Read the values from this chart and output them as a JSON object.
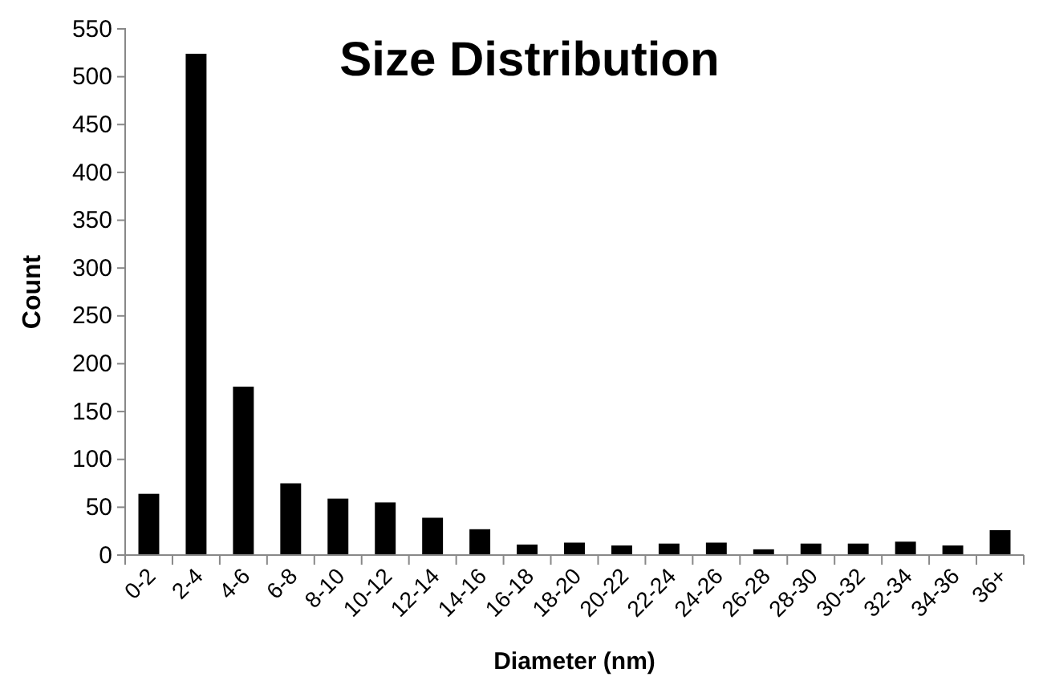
{
  "chart_data": {
    "type": "bar",
    "title": "Size Distribution",
    "xlabel": "Diameter (nm)",
    "ylabel": "Count",
    "categories": [
      "0-2",
      "2-4",
      "4-6",
      "6-8",
      "8-10",
      "10-12",
      "12-14",
      "14-16",
      "16-18",
      "18-20",
      "20-22",
      "22-24",
      "24-26",
      "26-28",
      "28-30",
      "30-32",
      "32-34",
      "34-36",
      "36+"
    ],
    "values": [
      64,
      524,
      176,
      75,
      59,
      55,
      39,
      27,
      11,
      13,
      10,
      12,
      13,
      6,
      12,
      12,
      14,
      10,
      26
    ],
    "color": "#000000",
    "ylim": [
      0,
      550
    ],
    "yticks": [
      0,
      50,
      100,
      150,
      200,
      250,
      300,
      350,
      400,
      450,
      500,
      550
    ],
    "grid": false
  }
}
